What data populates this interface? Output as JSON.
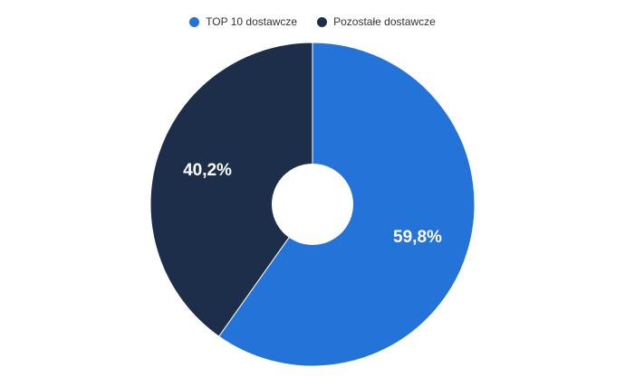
{
  "chart_data": {
    "type": "pie",
    "title": "",
    "donut": true,
    "categories": [
      "TOP 10 dostawcze",
      "Pozostałe dostawcze"
    ],
    "values": [
      59.8,
      40.2
    ],
    "labels": [
      "59,8%",
      "40,2%"
    ],
    "colors": [
      "#2473d8",
      "#1c2e4a"
    ],
    "legend_position": "top-center"
  },
  "legend": {
    "items": [
      {
        "label": "TOP 10 dostawcze",
        "color": "#2473d8"
      },
      {
        "label": "Pozostałe dostawcze",
        "color": "#1c2e4a"
      }
    ]
  }
}
